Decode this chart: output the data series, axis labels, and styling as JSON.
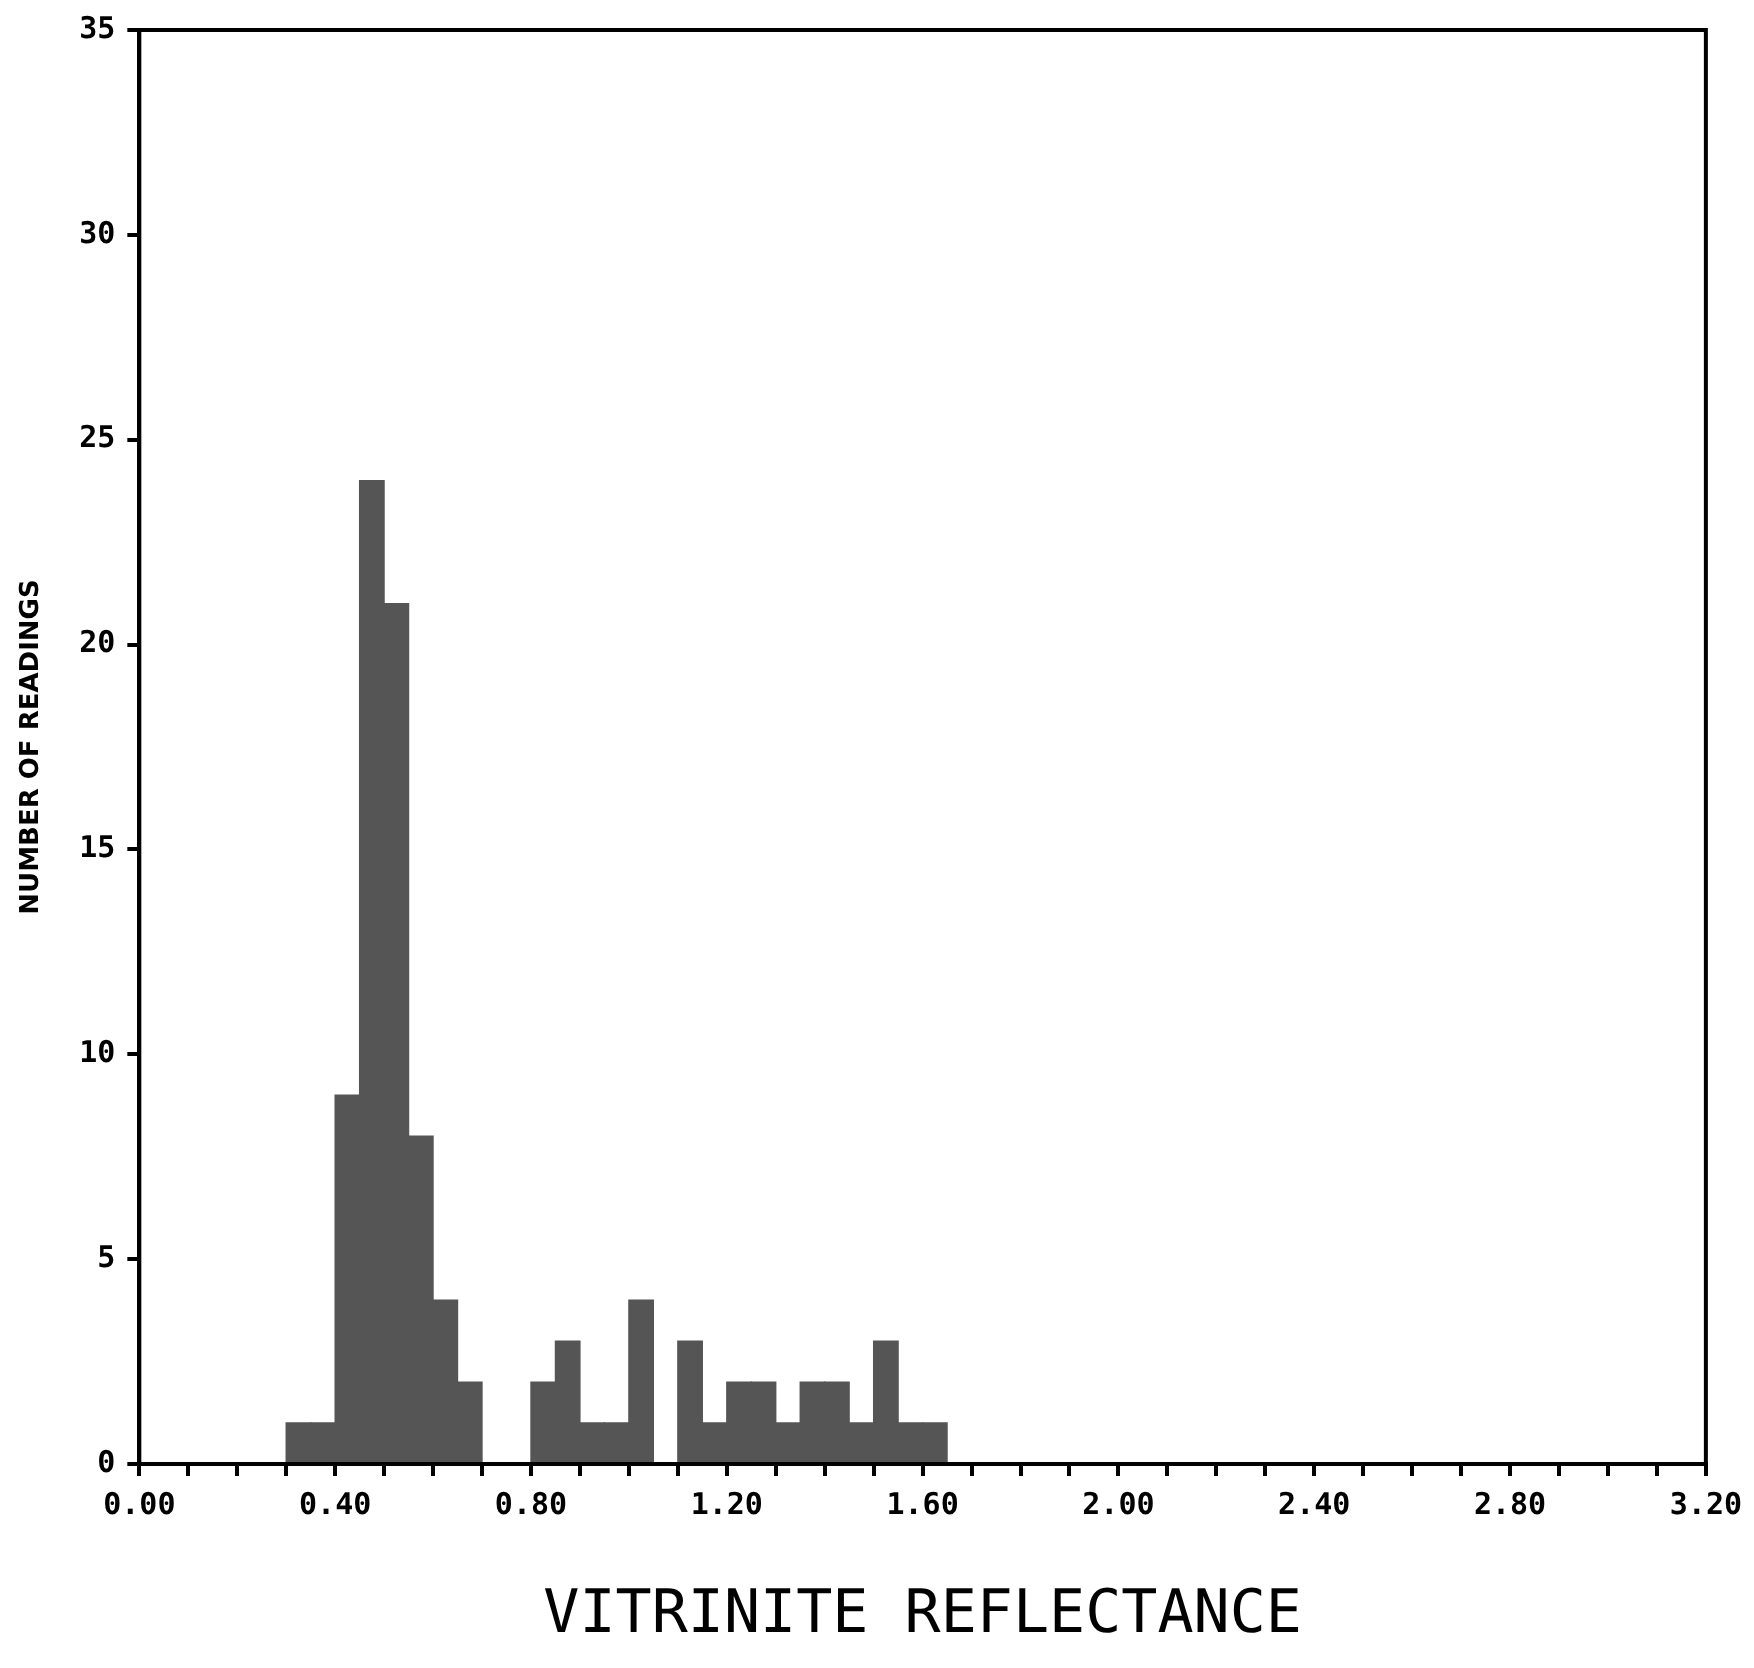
{
  "chart_data": {
    "type": "histogram",
    "xlabel": "VITRINITE REFLECTANCE",
    "ylabel": "NUMBER OF READINGS",
    "bins": [
      0.3,
      0.35,
      0.4,
      0.45,
      0.5,
      0.55,
      0.6,
      0.65,
      0.7,
      0.75,
      0.8,
      0.85,
      0.9,
      0.95,
      1.0,
      1.05,
      1.1,
      1.15,
      1.2,
      1.25,
      1.3,
      1.35,
      1.4,
      1.45,
      1.5,
      1.55,
      1.6,
      1.65
    ],
    "values": [
      1,
      1,
      9,
      24,
      21,
      8,
      4,
      2,
      0,
      0,
      2,
      3,
      1,
      1,
      4,
      0,
      3,
      1,
      2,
      2,
      1,
      2,
      2,
      1,
      3,
      1,
      1
    ],
    "color": "#555555",
    "xlim": [
      0,
      3.2
    ],
    "xticks": [
      {
        "value": 0,
        "label": "0.00"
      },
      {
        "value": 0.1,
        "label": null
      },
      {
        "value": 0.2,
        "label": null
      },
      {
        "value": 0.3,
        "label": null
      },
      {
        "value": 0.4,
        "label": "0.40"
      },
      {
        "value": 0.5,
        "label": null
      },
      {
        "value": 0.6,
        "label": null
      },
      {
        "value": 0.7,
        "label": null
      },
      {
        "value": 0.8,
        "label": "0.80"
      },
      {
        "value": 0.9,
        "label": null
      },
      {
        "value": 1.0,
        "label": null
      },
      {
        "value": 1.1,
        "label": null
      },
      {
        "value": 1.2,
        "label": "1.20"
      },
      {
        "value": 1.3,
        "label": null
      },
      {
        "value": 1.4,
        "label": null
      },
      {
        "value": 1.5,
        "label": null
      },
      {
        "value": 1.6,
        "label": "1.60"
      },
      {
        "value": 1.7,
        "label": null
      },
      {
        "value": 1.8,
        "label": null
      },
      {
        "value": 1.9,
        "label": null
      },
      {
        "value": 2.0,
        "label": "2.00"
      },
      {
        "value": 2.1,
        "label": null
      },
      {
        "value": 2.2,
        "label": null
      },
      {
        "value": 2.3,
        "label": null
      },
      {
        "value": 2.4,
        "label": "2.40"
      },
      {
        "value": 2.5,
        "label": null
      },
      {
        "value": 2.6,
        "label": null
      },
      {
        "value": 2.7,
        "label": null
      },
      {
        "value": 2.8,
        "label": "2.80"
      },
      {
        "value": 2.9,
        "label": null
      },
      {
        "value": 3.0,
        "label": null
      },
      {
        "value": 3.1,
        "label": null
      },
      {
        "value": 3.2,
        "label": "3.20"
      }
    ],
    "ylim": [
      0,
      35
    ],
    "yticks": [
      0,
      5,
      10,
      15,
      20,
      25,
      30,
      35
    ]
  }
}
